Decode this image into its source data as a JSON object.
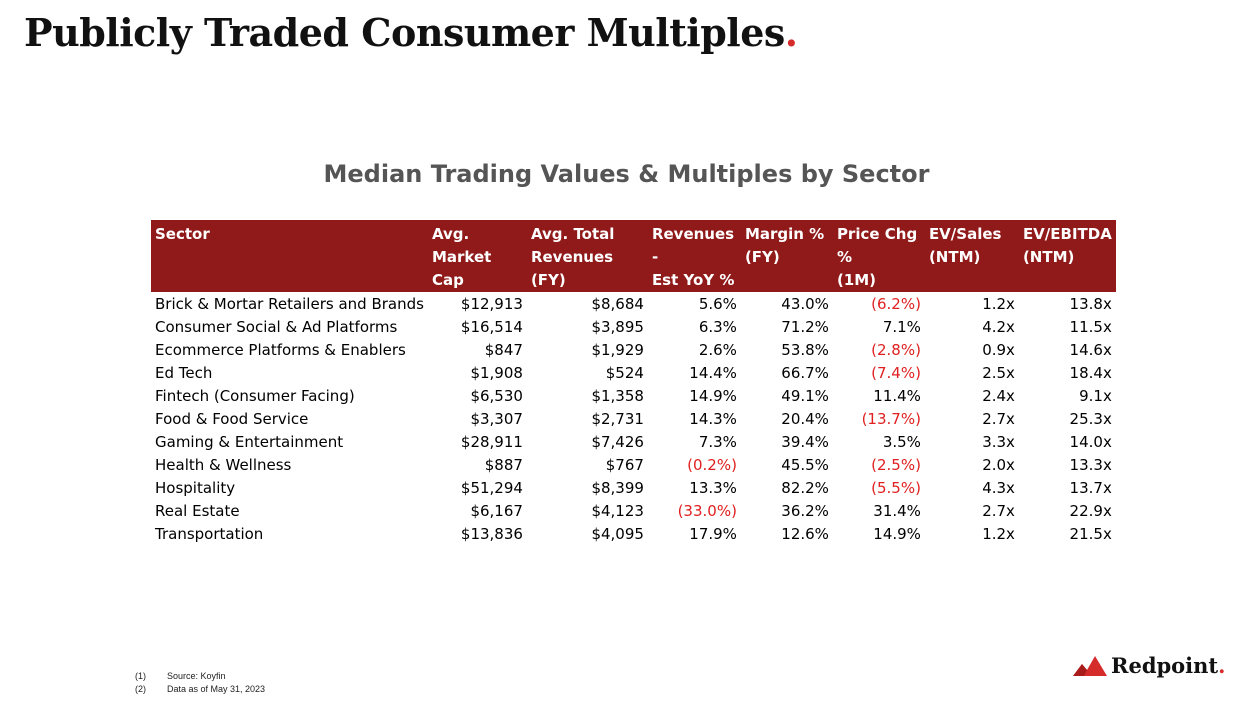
{
  "page": {
    "title": "Publicly Traded Consumer Multiples",
    "title_dot": "."
  },
  "table": {
    "title": "Median Trading Values & Multiples by Sector",
    "headers": [
      [
        "",
        "Sector"
      ],
      [
        "Avg. Market",
        "Cap"
      ],
      [
        "Avg. Total",
        "Revenues (FY)"
      ],
      [
        "Revenues -",
        "Est YoY %"
      ],
      [
        "Margin %",
        "(FY)"
      ],
      [
        "Price Chg %",
        "(1M)"
      ],
      [
        "EV/Sales",
        "(NTM)"
      ],
      [
        "EV/EBITDA",
        "(NTM)"
      ]
    ],
    "rows": [
      [
        "Brick & Mortar Retailers and Brands",
        "$12,913",
        "$8,684",
        "5.6%",
        "43.0%",
        "(6.2%)",
        "1.2x",
        "13.8x"
      ],
      [
        "Consumer Social & Ad Platforms",
        "$16,514",
        "$3,895",
        "6.3%",
        "71.2%",
        "7.1%",
        "4.2x",
        "11.5x"
      ],
      [
        "Ecommerce Platforms & Enablers",
        "$847",
        "$1,929",
        "2.6%",
        "53.8%",
        "(2.8%)",
        "0.9x",
        "14.6x"
      ],
      [
        "Ed Tech",
        "$1,908",
        "$524",
        "14.4%",
        "66.7%",
        "(7.4%)",
        "2.5x",
        "18.4x"
      ],
      [
        "Fintech (Consumer Facing)",
        "$6,530",
        "$1,358",
        "14.9%",
        "49.1%",
        "11.4%",
        "2.4x",
        "9.1x"
      ],
      [
        "Food & Food Service",
        "$3,307",
        "$2,731",
        "14.3%",
        "20.4%",
        "(13.7%)",
        "2.7x",
        "25.3x"
      ],
      [
        "Gaming & Entertainment",
        "$28,911",
        "$7,426",
        "7.3%",
        "39.4%",
        "3.5%",
        "3.3x",
        "14.0x"
      ],
      [
        "Health & Wellness",
        "$887",
        "$767",
        "(0.2%)",
        "45.5%",
        "(2.5%)",
        "2.0x",
        "13.3x"
      ],
      [
        "Hospitality",
        "$51,294",
        "$8,399",
        "13.3%",
        "82.2%",
        "(5.5%)",
        "4.3x",
        "13.7x"
      ],
      [
        "Real Estate",
        "$6,167",
        "$4,123",
        "(33.0%)",
        "36.2%",
        "31.4%",
        "2.7x",
        "22.9x"
      ],
      [
        "Transportation",
        "$13,836",
        "$4,095",
        "17.9%",
        "12.6%",
        "14.9%",
        "1.2x",
        "21.5x"
      ]
    ]
  },
  "footnotes": [
    {
      "num": "(1)",
      "text": "Source: Koyfin"
    },
    {
      "num": "(2)",
      "text": "Data as of May 31, 2023"
    }
  ],
  "logo": {
    "text": "Redpoint",
    "dot": ".",
    "icon": "mountain-peaks-icon"
  },
  "colors": {
    "header_bg": "#901a1a",
    "negative": "#e02020",
    "accent": "#d52b2b"
  }
}
